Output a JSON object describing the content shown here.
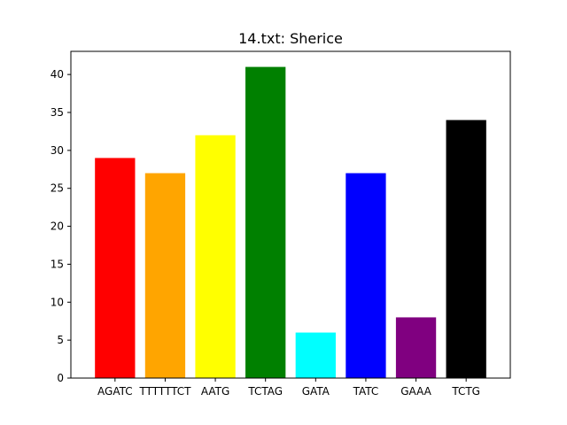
{
  "chart_data": {
    "type": "bar",
    "title": "14.txt: Sherice",
    "xlabel": "",
    "ylabel": "",
    "categories": [
      "AGATC",
      "TTTTTTCT",
      "AATG",
      "TCTAG",
      "GATA",
      "TATC",
      "GAAA",
      "TCTG"
    ],
    "values": [
      29,
      27,
      32,
      41,
      6,
      27,
      8,
      34
    ],
    "colors": [
      "#ff0000",
      "#ffa500",
      "#ffff00",
      "#008000",
      "#00ffff",
      "#0000ff",
      "#800080",
      "#000000"
    ],
    "ylim": [
      0,
      43.05
    ],
    "yticks": [
      0,
      5,
      10,
      15,
      20,
      25,
      30,
      35,
      40
    ],
    "grid": false,
    "legend": "none"
  }
}
